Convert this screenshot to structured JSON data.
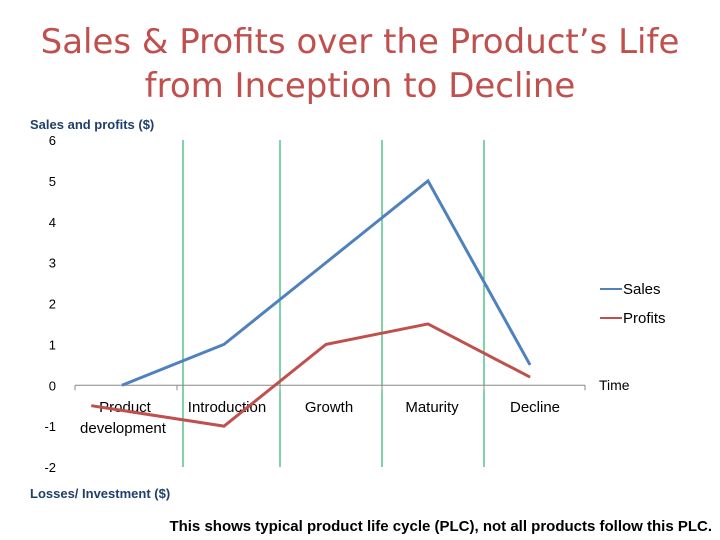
{
  "title": {
    "line1": "Sales & Profits over the Product’s Life",
    "line2": "from Inception to Decline"
  },
  "chart_data": {
    "type": "line",
    "title": "Sales & Profits over the Product’s Life from Inception to Decline",
    "ylabel": "Sales and profits ($)",
    "ylabel_negative": "Losses/ Investment ($)",
    "xlabel": "Time",
    "ylim": [
      -2,
      6
    ],
    "yticks": [
      "6",
      "5",
      "4",
      "3",
      "2",
      "1",
      "0",
      "-1",
      "-2"
    ],
    "categories": [
      "Product development",
      "Introduction",
      "Growth",
      "Maturity",
      "Decline"
    ],
    "series": [
      {
        "name": "Sales",
        "color": "#4f81bd",
        "x": [
          0,
          1,
          2,
          3,
          4
        ],
        "values": [
          0,
          1,
          3,
          5,
          0.5
        ]
      },
      {
        "name": "Profits",
        "color": "#c0504d",
        "x": [
          -0.3,
          1,
          2,
          3,
          4
        ],
        "values": [
          -0.5,
          -1,
          1,
          1.5,
          0.2
        ]
      }
    ],
    "stage_divider_color": "#00a651",
    "legend_position": "right"
  },
  "footnote": "This shows typical product life cycle (PLC), not all products follow this PLC."
}
